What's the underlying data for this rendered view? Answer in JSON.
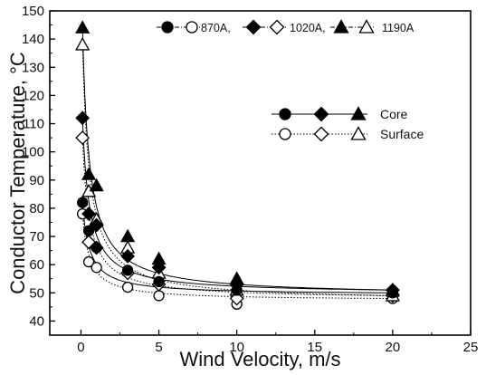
{
  "chart_data": {
    "type": "scatter",
    "xlabel": "Wind Velocity, m/s",
    "ylabel": "Conductor Temperature, °C",
    "xlim": [
      -2,
      25
    ],
    "ylim": [
      35,
      150
    ],
    "xticks": [
      0,
      5,
      10,
      15,
      20,
      25
    ],
    "yticks": [
      40,
      50,
      60,
      70,
      80,
      90,
      100,
      110,
      120,
      130,
      140,
      150
    ],
    "grid": false,
    "legend_top": [
      {
        "label": "870A,",
        "markers": [
          "circle-filled",
          "circle-open"
        ]
      },
      {
        "label": "1020A,",
        "markers": [
          "diamond-filled",
          "diamond-open"
        ]
      },
      {
        "label": "1190A",
        "markers": [
          "triangle-filled",
          "triangle-open"
        ]
      }
    ],
    "legend_right": [
      {
        "label": "Core",
        "filled": true,
        "line": "solid"
      },
      {
        "label": "Surface",
        "filled": false,
        "line": "dotted"
      }
    ],
    "series": [
      {
        "current": "870A",
        "kind": "Core",
        "marker": "circle",
        "filled": true,
        "x": [
          0.1,
          0.5,
          1,
          3,
          5,
          10,
          20
        ],
        "y": [
          82,
          72,
          66,
          58,
          54,
          51,
          50
        ]
      },
      {
        "current": "870A",
        "kind": "Surface",
        "marker": "circle",
        "filled": false,
        "x": [
          0.1,
          0.5,
          1,
          3,
          5,
          10,
          20
        ],
        "y": [
          78,
          61,
          59,
          52,
          49,
          46,
          48
        ]
      },
      {
        "current": "1020A",
        "kind": "Core",
        "marker": "diamond",
        "filled": true,
        "x": [
          0.1,
          0.5,
          1,
          3,
          5,
          10,
          20
        ],
        "y": [
          112,
          78,
          74,
          63,
          59,
          53,
          51
        ]
      },
      {
        "current": "1020A",
        "kind": "Surface",
        "marker": "diamond",
        "filled": false,
        "x": [
          0.1,
          0.5,
          1,
          3,
          5,
          10,
          20
        ],
        "y": [
          105,
          68,
          66,
          57,
          53,
          48,
          49
        ]
      },
      {
        "current": "1190A",
        "kind": "Core",
        "marker": "triangle",
        "filled": true,
        "x": [
          0.1,
          0.5,
          1,
          3,
          5,
          10,
          20
        ],
        "y": [
          144,
          92,
          88,
          70,
          62,
          55,
          51
        ]
      },
      {
        "current": "1190A",
        "kind": "Surface",
        "marker": "triangle",
        "filled": false,
        "x": [
          0.1,
          0.5,
          1,
          3,
          5,
          10,
          20
        ],
        "y": [
          138,
          86,
          76,
          66,
          57,
          51,
          49
        ]
      }
    ]
  }
}
